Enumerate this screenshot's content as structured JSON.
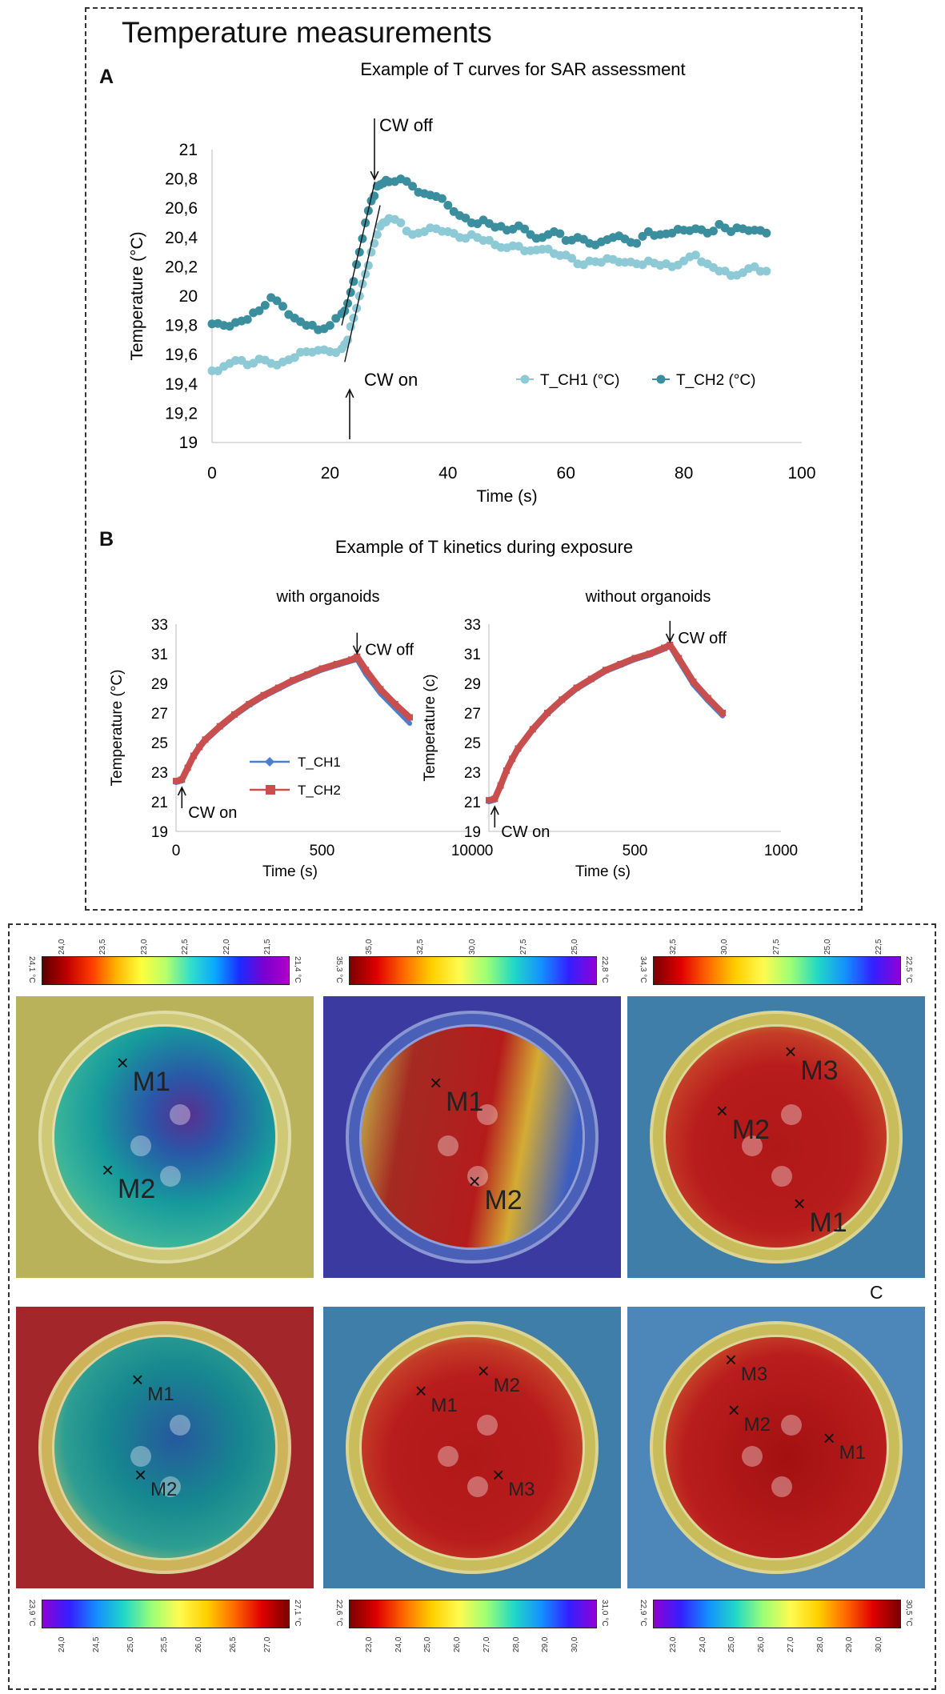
{
  "header": {
    "title": "Temperature measurements",
    "panel_a": "A",
    "panel_b": "B",
    "panel_c": "C"
  },
  "chart_data": [
    {
      "type": "scatter",
      "title": "Example of T curves for SAR assessment",
      "xlabel": "Time (s)",
      "ylabel": "Temperature (°C)",
      "xlim": [
        0,
        100
      ],
      "ylim": [
        19,
        21
      ],
      "xticks": [
        "0",
        "20",
        "40",
        "60",
        "80",
        "100"
      ],
      "yticks": [
        "19",
        "19,2",
        "19,4",
        "19,6",
        "19,8",
        "20",
        "20,2",
        "20,4",
        "20,6",
        "20,8",
        "21"
      ],
      "annotations": [
        "CW off",
        "CW on"
      ],
      "cw_on_time": 23,
      "cw_off_time": 28,
      "series": [
        {
          "name": "T_CH1 (°C)",
          "color": "#8ec9d6",
          "x": [
            0,
            2,
            4,
            6,
            8,
            10,
            12,
            14,
            16,
            18,
            20,
            22,
            23,
            24,
            25,
            26,
            27,
            28,
            29,
            30,
            32,
            34,
            36,
            38,
            40,
            42,
            44,
            46,
            48,
            50,
            52,
            54,
            56,
            58,
            60,
            62,
            64,
            66,
            68,
            70,
            72,
            74,
            76,
            78,
            80,
            82,
            84,
            86,
            88,
            90,
            92,
            94
          ],
          "y": [
            19.49,
            19.52,
            19.56,
            19.53,
            19.57,
            19.54,
            19.55,
            19.58,
            19.62,
            19.63,
            19.62,
            19.64,
            19.7,
            19.85,
            20.0,
            20.15,
            20.3,
            20.42,
            20.5,
            20.53,
            20.5,
            20.42,
            20.44,
            20.46,
            20.44,
            20.4,
            20.42,
            20.38,
            20.35,
            20.33,
            20.34,
            20.31,
            20.32,
            20.29,
            20.28,
            20.22,
            20.24,
            20.23,
            20.25,
            20.23,
            20.22,
            20.24,
            20.21,
            20.2,
            20.24,
            20.28,
            20.22,
            20.17,
            20.14,
            20.16,
            20.2,
            20.17
          ]
        },
        {
          "name": "T_CH2 (°C)",
          "color": "#3a8e9e",
          "x": [
            0,
            2,
            4,
            6,
            8,
            10,
            12,
            14,
            16,
            18,
            20,
            22,
            23,
            24,
            25,
            26,
            27,
            28,
            29,
            30,
            32,
            34,
            36,
            38,
            40,
            42,
            44,
            46,
            48,
            50,
            52,
            54,
            56,
            58,
            60,
            62,
            64,
            66,
            68,
            70,
            72,
            74,
            76,
            78,
            80,
            82,
            84,
            86,
            88,
            90,
            92,
            94
          ],
          "y": [
            19.81,
            19.8,
            19.82,
            19.84,
            19.9,
            19.99,
            19.93,
            19.85,
            19.8,
            19.77,
            19.8,
            19.88,
            19.95,
            20.1,
            20.3,
            20.5,
            20.65,
            20.75,
            20.77,
            20.78,
            20.8,
            20.75,
            20.7,
            20.68,
            20.62,
            20.55,
            20.5,
            20.52,
            20.47,
            20.45,
            20.48,
            20.42,
            20.4,
            20.44,
            20.38,
            20.4,
            20.36,
            20.37,
            20.4,
            20.39,
            20.36,
            20.44,
            20.42,
            20.43,
            20.45,
            20.46,
            20.43,
            20.49,
            20.44,
            20.46,
            20.45,
            20.43
          ]
        }
      ]
    },
    {
      "type": "line",
      "title": "Example of T kinetics during exposure",
      "subtitle": "with organoids",
      "xlabel": "Time (s)",
      "ylabel": "Temperature (°C)",
      "xlim": [
        0,
        1000
      ],
      "ylim": [
        19,
        33
      ],
      "xticks": [
        "0",
        "500",
        "1000"
      ],
      "yticks": [
        "19",
        "21",
        "23",
        "25",
        "27",
        "29",
        "31",
        "33"
      ],
      "annotations": [
        "CW off",
        "CW on"
      ],
      "series": [
        {
          "name": "T_CH1",
          "color": "#4a7fcc",
          "x": [
            0,
            20,
            40,
            60,
            80,
            100,
            150,
            200,
            250,
            300,
            350,
            400,
            450,
            500,
            550,
            600,
            620,
            650,
            700,
            750,
            800
          ],
          "y": [
            22.3,
            22.4,
            23.2,
            24.0,
            24.6,
            25.1,
            26.0,
            26.8,
            27.5,
            28.1,
            28.6,
            29.1,
            29.5,
            29.9,
            30.2,
            30.5,
            30.6,
            29.6,
            28.3,
            27.3,
            26.3
          ]
        },
        {
          "name": "T_CH2",
          "color": "#c94e4e",
          "x": [
            0,
            20,
            40,
            60,
            80,
            100,
            150,
            200,
            250,
            300,
            350,
            400,
            450,
            500,
            550,
            600,
            620,
            650,
            700,
            750,
            800
          ],
          "y": [
            22.4,
            22.5,
            23.3,
            24.1,
            24.7,
            25.2,
            26.1,
            26.9,
            27.6,
            28.2,
            28.7,
            29.2,
            29.6,
            30.0,
            30.3,
            30.6,
            30.8,
            29.9,
            28.6,
            27.6,
            26.7
          ]
        }
      ]
    },
    {
      "type": "line",
      "subtitle": "without organoids",
      "xlabel": "Time (s)",
      "ylabel": "Temperature (c)",
      "xlim": [
        0,
        1000
      ],
      "ylim": [
        19,
        33
      ],
      "xticks": [
        "0",
        "500",
        "1000"
      ],
      "yticks": [
        "19",
        "21",
        "23",
        "25",
        "27",
        "29",
        "31",
        "33"
      ],
      "annotations": [
        "CW off",
        "CW on"
      ],
      "series": [
        {
          "name": "T_CH1",
          "color": "#4a7fcc",
          "x": [
            0,
            20,
            40,
            60,
            80,
            100,
            150,
            200,
            250,
            300,
            350,
            400,
            450,
            500,
            550,
            600,
            620,
            650,
            700,
            750,
            800
          ],
          "y": [
            21.0,
            21.1,
            22.0,
            23.0,
            23.8,
            24.5,
            25.8,
            26.9,
            27.8,
            28.6,
            29.2,
            29.8,
            30.2,
            30.6,
            30.9,
            31.3,
            31.5,
            30.5,
            28.9,
            27.8,
            26.8
          ]
        },
        {
          "name": "T_CH2",
          "color": "#c94e4e",
          "x": [
            0,
            20,
            40,
            60,
            80,
            100,
            150,
            200,
            250,
            300,
            350,
            400,
            450,
            500,
            550,
            600,
            620,
            650,
            700,
            750,
            800
          ],
          "y": [
            21.1,
            21.2,
            22.1,
            23.1,
            23.9,
            24.6,
            25.9,
            27.0,
            27.9,
            28.7,
            29.3,
            29.9,
            30.3,
            30.7,
            31.0,
            31.4,
            31.6,
            30.7,
            29.1,
            28.0,
            27.0
          ]
        }
      ]
    }
  ],
  "thermal": {
    "top": [
      {
        "end_left": "24,1 °C",
        "end_right": "21,4 °C",
        "ticks": [
          "24,0",
          "23,5",
          "23,0",
          "22,5",
          "22,0",
          "21,5"
        ],
        "markers": [
          "M1",
          "M2"
        ],
        "scheme": "cool"
      },
      {
        "end_left": "35,3 °C",
        "end_right": "22,8 °C",
        "ticks": [
          "35,0",
          "32,5",
          "30,0",
          "27,5",
          "25,0"
        ],
        "markers": [
          "M1",
          "M2"
        ],
        "scheme": "split"
      },
      {
        "end_left": "34,3 °C",
        "end_right": "22,5 °C",
        "ticks": [
          "32,5",
          "30,0",
          "27,5",
          "25,0",
          "22,5"
        ],
        "markers": [
          "M3",
          "M2",
          "M1"
        ],
        "scheme": "hot"
      }
    ],
    "bottom": [
      {
        "end_left": "23,9 °C",
        "end_right": "27,1 °C",
        "ticks": [
          "24,0",
          "24,5",
          "25,0",
          "25,5",
          "26,0",
          "26,5",
          "27,0"
        ],
        "markers": [
          "M1",
          "M2"
        ],
        "scheme": "cool2"
      },
      {
        "end_left": "22,6 °C",
        "end_right": "31,0 °C",
        "ticks": [
          "23,0",
          "24,0",
          "25,0",
          "26,0",
          "27,0",
          "28,0",
          "29,0",
          "30,0"
        ],
        "markers": [
          "M1",
          "M2",
          "M3"
        ],
        "scheme": "hot"
      },
      {
        "end_left": "22,9 °C",
        "end_right": "30,5 °C",
        "ticks": [
          "23,0",
          "24,0",
          "25,0",
          "26,0",
          "27,0",
          "28,0",
          "29,0",
          "30,0"
        ],
        "markers": [
          "M3",
          "M2",
          "M1"
        ],
        "scheme": "hot2"
      }
    ]
  }
}
